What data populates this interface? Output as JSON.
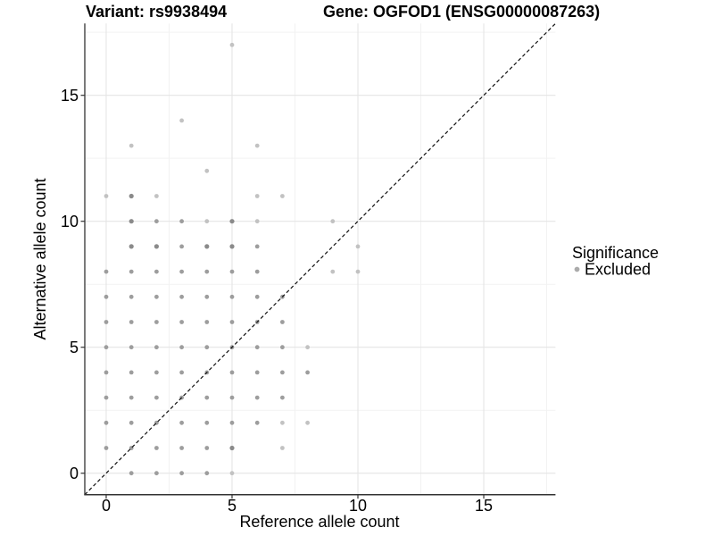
{
  "header": {
    "variant_title": "Variant: rs9938494",
    "gene_title": "Gene: OGFOD1 (ENSG00000087263)"
  },
  "chart_data": {
    "type": "scatter",
    "title": "Variant: rs9938494  Gene: OGFOD1 (ENSG00000087263)",
    "xlabel": "Reference allele count",
    "ylabel": "Alternative allele count",
    "x_ticks": [
      0,
      5,
      10,
      15
    ],
    "y_ticks": [
      0,
      5,
      10,
      15
    ],
    "minor_ticks": [
      2.5,
      7.5,
      12.5,
      17.5
    ],
    "xlim": [
      -0.85,
      17.85
    ],
    "ylim": [
      -0.85,
      17.85
    ],
    "grid": "major+minor",
    "identity_line": {
      "slope": 1,
      "intercept": 0,
      "style": "dashed",
      "color": "#111111"
    },
    "legend": {
      "title": "Significance",
      "position": "right",
      "items": [
        {
          "label": "Excluded",
          "color": "#ababab"
        }
      ]
    },
    "shade_colors": {
      "d": "#8a8a8a",
      "m": "#9d9d9d",
      "l": "#c2c2c2"
    },
    "points": [
      [
        1,
        0,
        "m"
      ],
      [
        2,
        0,
        "m"
      ],
      [
        3,
        0,
        "m"
      ],
      [
        4,
        0,
        "m"
      ],
      [
        5,
        0,
        "l"
      ],
      [
        0,
        1,
        "m"
      ],
      [
        1,
        1,
        "m"
      ],
      [
        2,
        1,
        "m"
      ],
      [
        3,
        1,
        "m"
      ],
      [
        4,
        1,
        "m"
      ],
      [
        5,
        1,
        "d"
      ],
      [
        7,
        1,
        "l"
      ],
      [
        0,
        2,
        "m"
      ],
      [
        1,
        2,
        "m"
      ],
      [
        2,
        2,
        "m"
      ],
      [
        3,
        2,
        "m"
      ],
      [
        4,
        2,
        "m"
      ],
      [
        5,
        2,
        "m"
      ],
      [
        6,
        2,
        "m"
      ],
      [
        7,
        2,
        "l"
      ],
      [
        8,
        2,
        "l"
      ],
      [
        0,
        3,
        "m"
      ],
      [
        1,
        3,
        "m"
      ],
      [
        2,
        3,
        "m"
      ],
      [
        3,
        3,
        "m"
      ],
      [
        4,
        3,
        "m"
      ],
      [
        5,
        3,
        "m"
      ],
      [
        6,
        3,
        "m"
      ],
      [
        7,
        3,
        "m"
      ],
      [
        0,
        4,
        "m"
      ],
      [
        1,
        4,
        "m"
      ],
      [
        2,
        4,
        "m"
      ],
      [
        3,
        4,
        "m"
      ],
      [
        4,
        4,
        "m"
      ],
      [
        5,
        4,
        "m"
      ],
      [
        6,
        4,
        "m"
      ],
      [
        7,
        4,
        "m"
      ],
      [
        8,
        4,
        "m"
      ],
      [
        0,
        5,
        "m"
      ],
      [
        1,
        5,
        "m"
      ],
      [
        2,
        5,
        "m"
      ],
      [
        3,
        5,
        "m"
      ],
      [
        4,
        5,
        "m"
      ],
      [
        5,
        5,
        "m"
      ],
      [
        6,
        5,
        "m"
      ],
      [
        7,
        5,
        "m"
      ],
      [
        8,
        5,
        "l"
      ],
      [
        0,
        6,
        "m"
      ],
      [
        1,
        6,
        "m"
      ],
      [
        2,
        6,
        "m"
      ],
      [
        3,
        6,
        "m"
      ],
      [
        4,
        6,
        "m"
      ],
      [
        5,
        6,
        "m"
      ],
      [
        6,
        6,
        "m"
      ],
      [
        7,
        6,
        "m"
      ],
      [
        0,
        7,
        "m"
      ],
      [
        1,
        7,
        "m"
      ],
      [
        2,
        7,
        "m"
      ],
      [
        3,
        7,
        "m"
      ],
      [
        4,
        7,
        "m"
      ],
      [
        5,
        7,
        "m"
      ],
      [
        6,
        7,
        "m"
      ],
      [
        7,
        7,
        "m"
      ],
      [
        0,
        8,
        "m"
      ],
      [
        1,
        8,
        "m"
      ],
      [
        2,
        8,
        "m"
      ],
      [
        3,
        8,
        "m"
      ],
      [
        4,
        8,
        "m"
      ],
      [
        5,
        8,
        "m"
      ],
      [
        6,
        8,
        "m"
      ],
      [
        9,
        8,
        "l"
      ],
      [
        10,
        8,
        "l"
      ],
      [
        1,
        9,
        "d"
      ],
      [
        2,
        9,
        "d"
      ],
      [
        3,
        9,
        "m"
      ],
      [
        4,
        9,
        "d"
      ],
      [
        5,
        9,
        "d"
      ],
      [
        6,
        9,
        "m"
      ],
      [
        10,
        9,
        "l"
      ],
      [
        1,
        10,
        "d"
      ],
      [
        2,
        10,
        "m"
      ],
      [
        3,
        10,
        "m"
      ],
      [
        4,
        10,
        "l"
      ],
      [
        5,
        10,
        "d"
      ],
      [
        6,
        10,
        "l"
      ],
      [
        9,
        10,
        "l"
      ],
      [
        0,
        11,
        "l"
      ],
      [
        1,
        11,
        "d"
      ],
      [
        2,
        11,
        "l"
      ],
      [
        6,
        11,
        "l"
      ],
      [
        7,
        11,
        "l"
      ],
      [
        4,
        12,
        "l"
      ],
      [
        1,
        13,
        "l"
      ],
      [
        6,
        13,
        "l"
      ],
      [
        3,
        14,
        "l"
      ],
      [
        5,
        17,
        "l"
      ]
    ]
  }
}
